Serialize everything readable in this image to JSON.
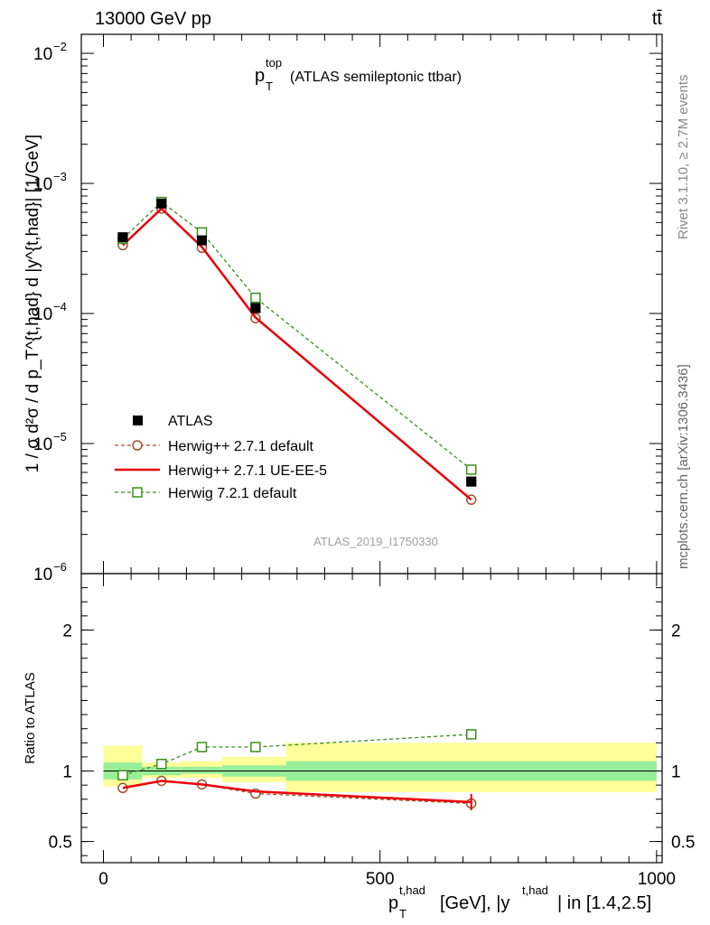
{
  "header": {
    "left": "13000 GeV pp",
    "right": "tt̄"
  },
  "side_labels": {
    "rivet": "Rivet 3.1.10, ≥ 2.7M events",
    "mcplots": "mcplots.cern.ch [arXiv:1306.3436]"
  },
  "chart_data": [
    {
      "type": "line",
      "title_main": "p",
      "title_sup": "top",
      "title_sub": "T",
      "title_rest": "(ATLAS semileptonic ttbar)",
      "watermark": "ATLAS_2019_I1750330",
      "ylabel": "1 / σ d²σ / d p_T^{t,had} d |y^{t,had}| [1/GeV]",
      "yscale": "log",
      "ylim": [
        1e-06,
        0.014
      ],
      "xlim": [
        -40,
        1010
      ],
      "y_ticks": [
        {
          "value": 1e-06,
          "base": "10",
          "exp": "−6"
        },
        {
          "value": 1e-05,
          "base": "10",
          "exp": "−5"
        },
        {
          "value": 0.0001,
          "base": "10",
          "exp": "−4"
        },
        {
          "value": 0.001,
          "base": "10",
          "exp": "−3"
        },
        {
          "value": 0.01,
          "base": "10",
          "exp": "−2"
        }
      ],
      "legend_position": "bottom-left",
      "legend": [
        {
          "label": "ATLAS",
          "color": "#000000",
          "style": "marker-square-filled"
        },
        {
          "label": "Herwig++ 2.7.1 default",
          "color": "#a0522d",
          "style": "dashed-circle"
        },
        {
          "label": "Herwig++ 2.7.1 UE-EE-5",
          "color": "#e8000b",
          "style": "solid"
        },
        {
          "label": "Herwig 7.2.1 default",
          "color": "#3a8f1a",
          "style": "dashed-open-square"
        }
      ],
      "x": [
        35,
        105,
        178,
        275,
        665
      ],
      "series": [
        {
          "name": "ATLAS",
          "color": "#000000",
          "values": [
            0.000385,
            0.0007,
            0.000365,
            0.00011,
            5.1e-06
          ]
        },
        {
          "name": "Herwig++ 2.7.1 default",
          "color": "#a0522d",
          "values": [
            0.000335,
            0.00064,
            0.00032,
            9.2e-05,
            3.7e-06
          ]
        },
        {
          "name": "Herwig++ 2.7.1 UE-EE-5",
          "color": "#e8000b",
          "values": [
            0.000335,
            0.00064,
            0.000325,
            9.3e-05,
            3.7e-06
          ]
        },
        {
          "name": "Herwig 7.2.1 default",
          "color": "#3a8f1a",
          "values": [
            0.000375,
            0.00072,
            0.00042,
            0.000132,
            6.3e-06
          ]
        }
      ]
    },
    {
      "type": "line",
      "ylabel": "Ratio to ATLAS",
      "xlabel_main": "p",
      "xlabel_sup": "t,had",
      "xlabel_sub": "T",
      "xlabel_rest": "[GeV], |y",
      "xlabel_sup2": "t,had",
      "xlabel_end": "| in [1.4,2.5]",
      "ylim": [
        0.35,
        2.4
      ],
      "xlim": [
        -40,
        1010
      ],
      "x_ticks": [
        {
          "value": 0,
          "label": "0"
        },
        {
          "value": 500,
          "label": "500"
        },
        {
          "value": 1000,
          "label": "1000"
        }
      ],
      "y_ticks": [
        {
          "value": 0.5,
          "label": "0.5"
        },
        {
          "value": 1,
          "label": "1"
        },
        {
          "value": 2,
          "label": "2"
        }
      ],
      "bins": [
        {
          "lo": 0,
          "hi": 70,
          "yellow": [
            0.89,
            1.18
          ],
          "green": [
            0.94,
            1.06
          ]
        },
        {
          "lo": 70,
          "hi": 140,
          "yellow": [
            0.95,
            1.06
          ],
          "green": [
            0.97,
            1.03
          ]
        },
        {
          "lo": 140,
          "hi": 215,
          "yellow": [
            0.95,
            1.07
          ],
          "green": [
            0.98,
            1.03
          ]
        },
        {
          "lo": 215,
          "hi": 330,
          "yellow": [
            0.92,
            1.1
          ],
          "green": [
            0.96,
            1.04
          ]
        },
        {
          "lo": 330,
          "hi": 1000,
          "yellow": [
            0.85,
            1.2
          ],
          "green": [
            0.93,
            1.07
          ]
        }
      ],
      "x": [
        35,
        105,
        178,
        275,
        665
      ],
      "series": [
        {
          "name": "Herwig++ 2.7.1 default",
          "color": "#a0522d",
          "values": [
            0.88,
            0.93,
            0.905,
            0.84,
            0.77
          ]
        },
        {
          "name": "Herwig++ 2.7.1 UE-EE-5",
          "color": "#e8000b",
          "values": [
            0.88,
            0.93,
            0.905,
            0.855,
            0.78
          ]
        },
        {
          "name": "Herwig 7.2.1 default",
          "color": "#3a8f1a",
          "values": [
            0.97,
            1.05,
            1.17,
            1.17,
            1.26
          ]
        }
      ]
    }
  ]
}
